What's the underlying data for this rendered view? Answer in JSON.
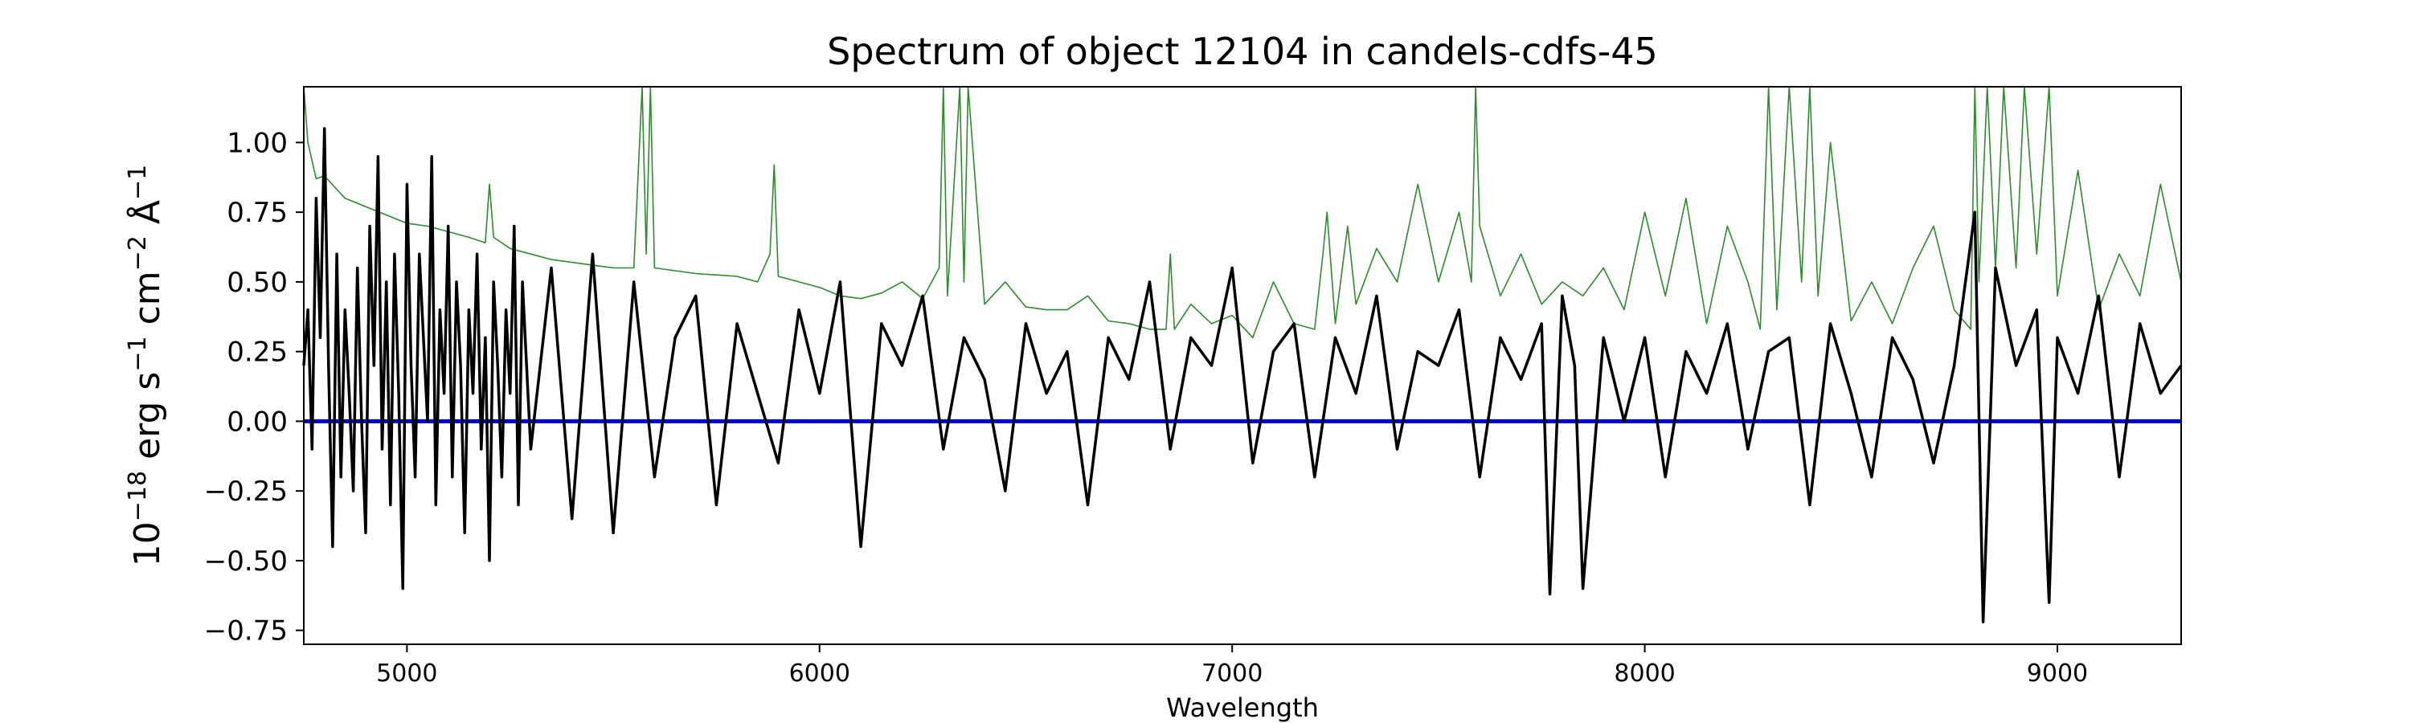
{
  "chart_data": {
    "type": "line",
    "title": "Spectrum of object 12104 in candels-cdfs-45",
    "xlabel": "Wavelength",
    "ylabel_parts": {
      "base": "10",
      "exp": "−18",
      "u1": " erg s",
      "e1": "−1",
      "u2": " cm",
      "e2": "−2",
      "u3": " Å",
      "e3": "−1"
    },
    "xlim": [
      4750,
      9300
    ],
    "ylim": [
      -0.8,
      1.2
    ],
    "x_ticks": [
      5000,
      6000,
      7000,
      8000,
      9000
    ],
    "x_tick_labels": [
      "5000",
      "6000",
      "7000",
      "8000",
      "9000"
    ],
    "y_ticks": [
      -0.75,
      -0.5,
      -0.25,
      0.0,
      0.25,
      0.5,
      0.75,
      1.0
    ],
    "y_tick_labels": [
      "−0.75",
      "−0.50",
      "−0.25",
      "0.00",
      "0.25",
      "0.50",
      "0.75",
      "1.00"
    ],
    "grid": false,
    "colors": {
      "flux": "#000000",
      "error": "#2e8b2e",
      "model": "#0000cc"
    },
    "series": [
      {
        "role": "flux",
        "x": [
          4750,
          4760,
          4770,
          4780,
          4790,
          4800,
          4810,
          4820,
          4830,
          4840,
          4850,
          4860,
          4870,
          4880,
          4890,
          4900,
          4910,
          4920,
          4930,
          4940,
          4950,
          4960,
          4970,
          4980,
          4990,
          5000,
          5010,
          5020,
          5030,
          5040,
          5050,
          5060,
          5070,
          5080,
          5090,
          5100,
          5110,
          5120,
          5130,
          5140,
          5150,
          5160,
          5170,
          5180,
          5190,
          5200,
          5210,
          5220,
          5230,
          5240,
          5250,
          5260,
          5270,
          5280,
          5290,
          5300,
          5350,
          5400,
          5450,
          5500,
          5550,
          5600,
          5650,
          5700,
          5750,
          5800,
          5850,
          5900,
          5950,
          6000,
          6050,
          6100,
          6150,
          6200,
          6250,
          6300,
          6350,
          6400,
          6450,
          6500,
          6550,
          6600,
          6650,
          6700,
          6750,
          6800,
          6850,
          6900,
          6950,
          7000,
          7050,
          7100,
          7150,
          7200,
          7250,
          7300,
          7350,
          7400,
          7450,
          7500,
          7550,
          7600,
          7650,
          7700,
          7750,
          7770,
          7800,
          7830,
          7850,
          7900,
          7950,
          8000,
          8050,
          8100,
          8150,
          8200,
          8250,
          8300,
          8350,
          8400,
          8450,
          8500,
          8550,
          8600,
          8650,
          8700,
          8750,
          8800,
          8820,
          8850,
          8900,
          8950,
          8980,
          9000,
          9050,
          9100,
          9150,
          9200,
          9250,
          9300
        ],
        "y": [
          0.2,
          0.4,
          -0.1,
          0.8,
          0.3,
          1.05,
          0.2,
          -0.45,
          0.6,
          -0.2,
          0.4,
          0.1,
          -0.25,
          0.55,
          0.0,
          -0.4,
          0.7,
          0.2,
          0.95,
          -0.1,
          0.5,
          -0.3,
          0.6,
          0.1,
          -0.6,
          0.85,
          0.2,
          -0.2,
          0.6,
          0.3,
          0.0,
          0.95,
          -0.3,
          0.4,
          0.1,
          0.7,
          -0.2,
          0.5,
          0.2,
          -0.4,
          0.4,
          0.1,
          0.6,
          -0.1,
          0.3,
          -0.5,
          0.5,
          0.2,
          -0.2,
          0.4,
          0.1,
          0.7,
          -0.3,
          0.5,
          0.2,
          -0.1,
          0.55,
          -0.35,
          0.6,
          -0.4,
          0.5,
          -0.2,
          0.3,
          0.45,
          -0.3,
          0.35,
          0.1,
          -0.15,
          0.4,
          0.1,
          0.5,
          -0.45,
          0.35,
          0.2,
          0.45,
          -0.1,
          0.3,
          0.15,
          -0.25,
          0.35,
          0.1,
          0.25,
          -0.3,
          0.3,
          0.15,
          0.5,
          -0.1,
          0.3,
          0.2,
          0.55,
          -0.15,
          0.25,
          0.35,
          -0.2,
          0.3,
          0.1,
          0.45,
          -0.1,
          0.25,
          0.2,
          0.4,
          -0.2,
          0.3,
          0.15,
          0.35,
          -0.62,
          0.45,
          0.2,
          -0.6,
          0.3,
          0.0,
          0.3,
          -0.2,
          0.25,
          0.1,
          0.35,
          -0.1,
          0.25,
          0.3,
          -0.3,
          0.35,
          0.1,
          -0.2,
          0.3,
          0.15,
          -0.15,
          0.2,
          0.75,
          -0.72,
          0.55,
          0.2,
          0.4,
          -0.65,
          0.3,
          0.1,
          0.45,
          -0.2,
          0.35,
          0.1,
          0.2
        ]
      },
      {
        "role": "error",
        "x": [
          4750,
          4760,
          4780,
          4800,
          4850,
          4900,
          4950,
          5000,
          5050,
          5100,
          5150,
          5190,
          5200,
          5210,
          5250,
          5300,
          5350,
          5400,
          5450,
          5500,
          5550,
          5570,
          5580,
          5590,
          5600,
          5700,
          5800,
          5850,
          5880,
          5890,
          5900,
          5950,
          6000,
          6050,
          6100,
          6150,
          6200,
          6250,
          6290,
          6300,
          6310,
          6340,
          6350,
          6360,
          6400,
          6450,
          6500,
          6550,
          6600,
          6650,
          6700,
          6750,
          6800,
          6840,
          6850,
          6860,
          6900,
          6950,
          7000,
          7050,
          7100,
          7150,
          7200,
          7220,
          7230,
          7250,
          7280,
          7300,
          7350,
          7400,
          7450,
          7500,
          7550,
          7580,
          7590,
          7600,
          7650,
          7700,
          7750,
          7800,
          7850,
          7900,
          7950,
          8000,
          8050,
          8100,
          8150,
          8200,
          8250,
          8280,
          8300,
          8320,
          8350,
          8380,
          8400,
          8420,
          8450,
          8500,
          8550,
          8600,
          8650,
          8700,
          8750,
          8790,
          8800,
          8810,
          8830,
          8850,
          8870,
          8900,
          8920,
          8950,
          8980,
          9000,
          9050,
          9100,
          9150,
          9200,
          9250,
          9300
        ],
        "y": [
          1.2,
          1.0,
          0.87,
          0.88,
          0.8,
          0.77,
          0.74,
          0.71,
          0.7,
          0.68,
          0.66,
          0.64,
          0.85,
          0.66,
          0.62,
          0.6,
          0.58,
          0.57,
          0.56,
          0.55,
          0.55,
          1.2,
          0.6,
          1.2,
          0.55,
          0.53,
          0.52,
          0.5,
          0.6,
          0.92,
          0.52,
          0.5,
          0.48,
          0.45,
          0.44,
          0.46,
          0.5,
          0.44,
          0.55,
          1.2,
          0.45,
          1.2,
          0.5,
          1.2,
          0.42,
          0.5,
          0.41,
          0.4,
          0.4,
          0.45,
          0.36,
          0.35,
          0.33,
          0.33,
          0.6,
          0.33,
          0.42,
          0.35,
          0.38,
          0.3,
          0.5,
          0.35,
          0.33,
          0.6,
          0.75,
          0.35,
          0.7,
          0.42,
          0.62,
          0.5,
          0.85,
          0.5,
          0.75,
          0.5,
          1.2,
          0.7,
          0.45,
          0.6,
          0.42,
          0.5,
          0.45,
          0.55,
          0.4,
          0.75,
          0.45,
          0.8,
          0.35,
          0.7,
          0.5,
          0.33,
          1.2,
          0.4,
          1.2,
          0.5,
          1.2,
          0.45,
          1.0,
          0.36,
          0.5,
          0.35,
          0.55,
          0.7,
          0.4,
          0.33,
          1.2,
          0.5,
          1.2,
          0.55,
          1.2,
          0.55,
          1.2,
          0.6,
          1.2,
          0.45,
          0.9,
          0.4,
          0.6,
          0.45,
          0.85,
          0.5
        ]
      },
      {
        "role": "model",
        "x": [
          4750,
          9300
        ],
        "y": [
          0.0,
          0.0
        ]
      }
    ]
  }
}
